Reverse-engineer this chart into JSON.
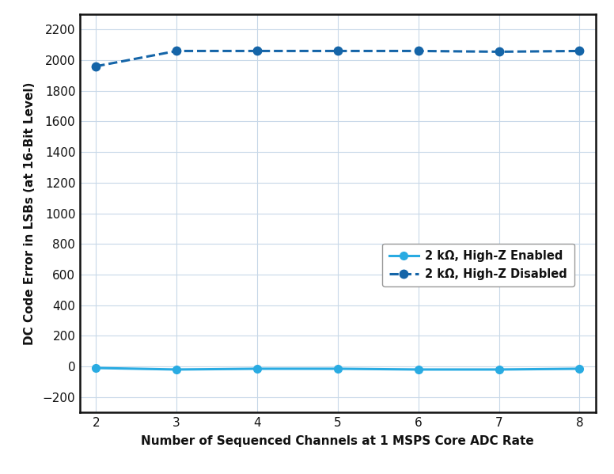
{
  "x": [
    2,
    3,
    4,
    5,
    6,
    7,
    8
  ],
  "highz_enabled": [
    -10,
    -20,
    -15,
    -15,
    -20,
    -20,
    -15
  ],
  "highz_disabled": [
    1960,
    2060,
    2060,
    2060,
    2060,
    2055,
    2060
  ],
  "color_enabled": "#29ABE2",
  "color_disabled": "#1565A8",
  "xlabel": "Number of Sequenced Channels at 1 MSPS Core ADC Rate",
  "ylabel": "DC Code Error in LSBs (at 16-Bit Level)",
  "label_enabled": "2 kΩ, High-Z Enabled",
  "label_disabled": "2 kΩ, High-Z Disabled",
  "xlim": [
    1.8,
    8.2
  ],
  "ylim": [
    -300,
    2300
  ],
  "yticks": [
    -200,
    0,
    200,
    400,
    600,
    800,
    1000,
    1200,
    1400,
    1600,
    1800,
    2000,
    2200
  ],
  "xticks": [
    2,
    3,
    4,
    5,
    6,
    7,
    8
  ],
  "background_color": "#ffffff",
  "grid_color": "#c8d8e8",
  "label_fontsize": 11,
  "tick_fontsize": 11,
  "legend_fontsize": 10.5
}
